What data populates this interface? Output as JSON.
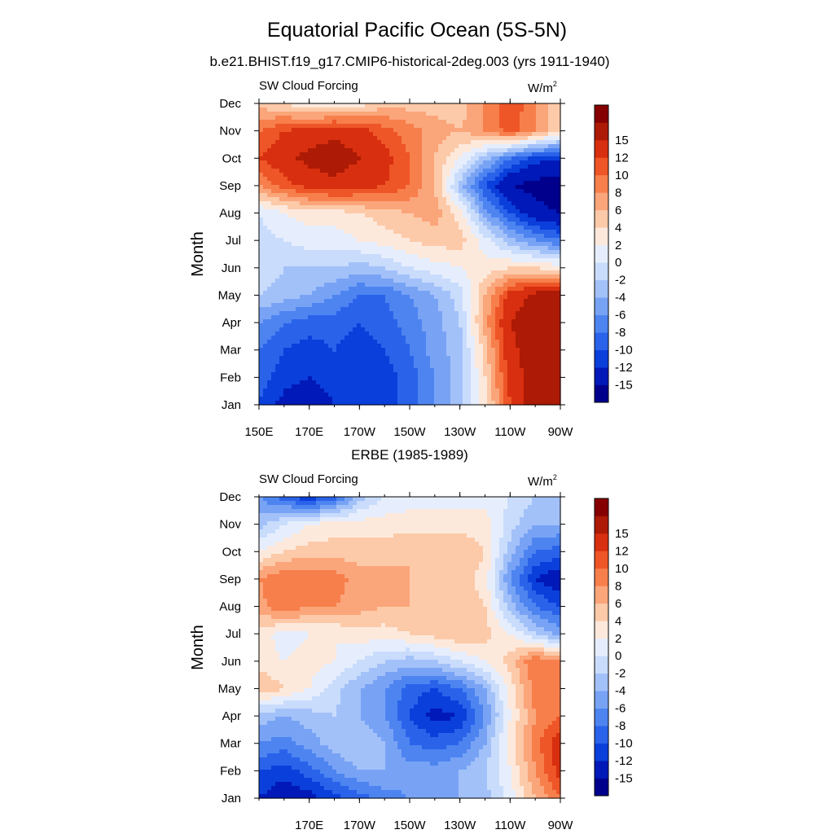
{
  "title": "Equatorial Pacific Ocean (5S-5N)",
  "panels_meta": {
    "top_subtitle": "b.e21.BHIST.f19_g17.CMIP6-historical-2deg.003 (yrs 1911-1940)",
    "bottom_subtitle": "ERBE (1985-1989)",
    "left_label": "SW Cloud Forcing",
    "units_base": "W/m",
    "units_exp": "2",
    "ylabel": "Month"
  },
  "colorbar": {
    "levels": [
      -18,
      -15,
      -12,
      -10,
      -8,
      -6,
      -4,
      -2,
      0,
      2,
      4,
      6,
      8,
      10,
      12,
      15,
      18
    ],
    "labels": [
      "-15",
      "-12",
      "-10",
      "-8",
      "-6",
      "-4",
      "-2",
      "0",
      "2",
      "4",
      "6",
      "8",
      "10",
      "12",
      "15"
    ],
    "colors": [
      "#00008c",
      "#0019b8",
      "#0a3fdb",
      "#2a63ea",
      "#4d84f0",
      "#78a3f5",
      "#a3c1f9",
      "#c9dcfc",
      "#e6eefd",
      "#fde9dc",
      "#fccaa9",
      "#fba57a",
      "#f77f4c",
      "#ee5527",
      "#d72f0f",
      "#ad1a05",
      "#870000"
    ]
  },
  "chart_data": [
    {
      "type": "heatmap",
      "title": "b.e21.BHIST.f19_g17.CMIP6-historical-2deg.003 (yrs 1911-1940)",
      "left_string": "SW Cloud Forcing",
      "units": "W/m2",
      "ylabel": "Month",
      "xlabel": "",
      "x_range": [
        150,
        270
      ],
      "x_ticks": [
        150,
        170,
        190,
        210,
        230,
        250,
        270
      ],
      "x_tick_labels": [
        "150E",
        "170E",
        "170W",
        "150W",
        "130W",
        "110W",
        "90W"
      ],
      "y_tick_labels": [
        "Jan",
        "Feb",
        "Mar",
        "Apr",
        "May",
        "Jun",
        "Jul",
        "Aug",
        "Sep",
        "Oct",
        "Nov",
        "Dec"
      ],
      "x": [
        150,
        160,
        170,
        180,
        190,
        200,
        210,
        220,
        230,
        240,
        250,
        260,
        270
      ],
      "y": [
        "Jan",
        "Feb",
        "Mar",
        "Apr",
        "May",
        "Jun",
        "Jul",
        "Aug",
        "Sep",
        "Oct",
        "Nov",
        "Dec"
      ],
      "z": [
        [
          -10,
          -13,
          -14,
          -12,
          -12,
          -11,
          -9,
          -6,
          -3,
          3,
          12,
          17,
          18
        ],
        [
          -9,
          -11,
          -12,
          -11,
          -12,
          -11,
          -9,
          -6,
          -3,
          4,
          13,
          17,
          18
        ],
        [
          -8,
          -10,
          -11,
          -10,
          -11,
          -10,
          -8,
          -5,
          -3,
          5,
          14,
          17,
          18
        ],
        [
          -6,
          -8,
          -9,
          -9,
          -10,
          -9,
          -7,
          -5,
          -2,
          7,
          15,
          17,
          18
        ],
        [
          -2,
          -3,
          -4,
          -6,
          -8,
          -8,
          -6,
          -4,
          -1,
          6,
          13,
          16,
          17
        ],
        [
          0,
          -2,
          -2,
          -2,
          -3,
          -2,
          0,
          1,
          2,
          3,
          4,
          4,
          3
        ],
        [
          -1,
          0,
          1,
          1,
          2,
          3,
          4,
          5,
          5,
          1,
          -3,
          -6,
          -8
        ],
        [
          0,
          2,
          3,
          3,
          4,
          5,
          6,
          7,
          3,
          -5,
          -10,
          -14,
          -15
        ],
        [
          8,
          11,
          13,
          14,
          13,
          12,
          10,
          6,
          -3,
          -10,
          -15,
          -16,
          -17
        ],
        [
          12,
          14,
          16,
          17,
          15,
          13,
          10,
          6,
          2,
          -3,
          -8,
          -11,
          -12
        ],
        [
          10,
          12,
          13,
          14,
          13,
          11,
          9,
          7,
          6,
          8,
          11,
          8,
          4
        ],
        [
          5,
          4,
          2,
          2,
          3,
          5,
          5,
          5,
          5,
          8,
          12,
          8,
          4
        ]
      ]
    },
    {
      "type": "heatmap",
      "title": "ERBE (1985-1989)",
      "left_string": "SW Cloud Forcing",
      "units": "W/m2",
      "ylabel": "Month",
      "xlabel": "",
      "x_range": [
        150,
        270
      ],
      "x_ticks": [
        170,
        190,
        210,
        230,
        250,
        270
      ],
      "x_tick_labels": [
        "170E",
        "170W",
        "150W",
        "130W",
        "110W",
        "90W"
      ],
      "y_tick_labels": [
        "Jan",
        "Feb",
        "Mar",
        "Apr",
        "May",
        "Jun",
        "Jul",
        "Aug",
        "Sep",
        "Oct",
        "Nov",
        "Dec"
      ],
      "x": [
        150,
        160,
        170,
        180,
        190,
        200,
        210,
        220,
        230,
        240,
        250,
        260,
        270
      ],
      "y": [
        "Jan",
        "Feb",
        "Mar",
        "Apr",
        "May",
        "Jun",
        "Jul",
        "Aug",
        "Sep",
        "Oct",
        "Nov",
        "Dec"
      ],
      "z": [
        [
          -12,
          -14,
          -13,
          -11,
          -9,
          -7,
          -6,
          -5,
          -4,
          -3,
          1,
          6,
          10
        ],
        [
          -10,
          -11,
          -9,
          -6,
          -4,
          -4,
          -5,
          -5,
          -4,
          -2,
          2,
          8,
          13
        ],
        [
          -6,
          -7,
          -5,
          -3,
          -2,
          -4,
          -8,
          -9,
          -8,
          -4,
          3,
          9,
          14
        ],
        [
          -3,
          -4,
          -3,
          -2,
          -4,
          -6,
          -10,
          -13,
          -12,
          -6,
          2,
          8,
          10
        ],
        [
          6,
          4,
          2,
          -1,
          -4,
          -6,
          -9,
          -10,
          -8,
          -4,
          3,
          9,
          10
        ],
        [
          3,
          2,
          3,
          2,
          0,
          -2,
          -3,
          -2,
          0,
          2,
          5,
          10,
          8
        ],
        [
          3,
          1,
          2,
          2,
          3,
          3,
          4,
          5,
          6,
          5,
          2,
          -2,
          -5
        ],
        [
          7,
          10,
          8,
          8,
          7,
          6,
          6,
          6,
          6,
          4,
          -3,
          -8,
          -10
        ],
        [
          8,
          10,
          10,
          9,
          7,
          7,
          6,
          5,
          5,
          3,
          -6,
          -12,
          -14
        ],
        [
          2,
          4,
          5,
          5,
          5,
          5,
          6,
          6,
          6,
          4,
          -3,
          -8,
          -9
        ],
        [
          -3,
          0,
          2,
          3,
          3,
          3,
          3,
          3,
          3,
          3,
          -1,
          -4,
          -4
        ],
        [
          -6,
          -9,
          -12,
          -9,
          -3,
          0,
          1,
          1,
          1,
          1,
          0,
          -2,
          -2
        ]
      ]
    }
  ]
}
